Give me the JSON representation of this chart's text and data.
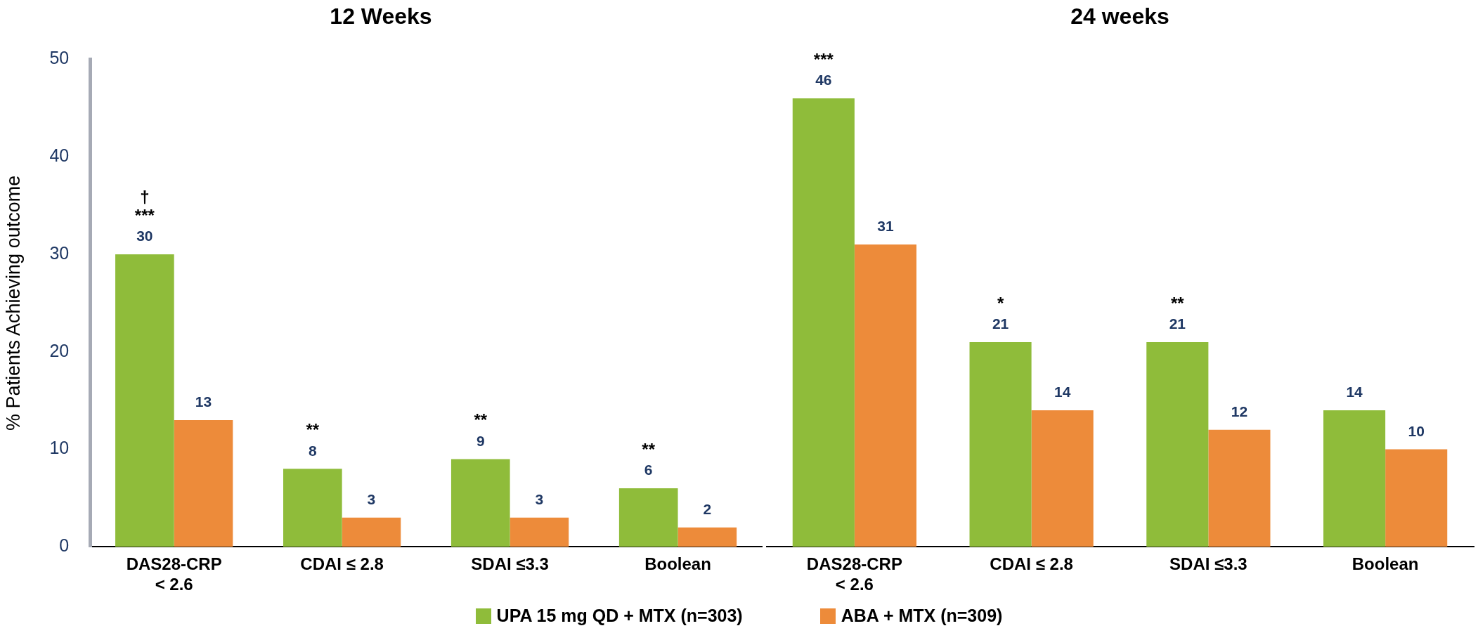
{
  "chart_data": [
    {
      "type": "bar",
      "title": "12 Weeks",
      "ylabel": "% Patients Achieving outcome",
      "categories": [
        "DAS28-CRP\n< 2.6",
        "CDAI ≤ 2.8",
        "SDAI ≤3.3",
        "Boolean"
      ],
      "series": [
        {
          "name": "UPA 15 mg QD + MTX (n=303)",
          "color": "#8fbc3a",
          "values": [
            30,
            8,
            9,
            6
          ]
        },
        {
          "name": "ABA + MTX (n=309)",
          "color": "#ed8b3a",
          "values": [
            13,
            3,
            3,
            2
          ]
        }
      ],
      "ylim": [
        0,
        50
      ],
      "yticks": [
        0,
        10,
        20,
        30,
        40,
        50
      ],
      "grid": false,
      "legend": "bottom",
      "data_labels": true,
      "annotations": [
        {
          "text": "†\n***",
          "x": "DAS28-CRP\n< 2.6",
          "y": 30
        },
        {
          "text": "**",
          "x": "CDAI ≤ 2.8",
          "y": 8
        },
        {
          "text": "**",
          "x": "SDAI ≤3.3",
          "y": 9
        },
        {
          "text": "**",
          "x": "Boolean",
          "y": 6
        }
      ]
    },
    {
      "type": "bar",
      "title": "24 weeks",
      "categories": [
        "DAS28-CRP\n< 2.6",
        "CDAI ≤ 2.8",
        "SDAI ≤3.3",
        "Boolean"
      ],
      "series": [
        {
          "color": "#8fbc3a",
          "values": [
            46,
            21,
            21,
            14
          ]
        },
        {
          "color": "#ed8b3a",
          "values": [
            31,
            14,
            12,
            10
          ]
        }
      ],
      "ylim": [
        0,
        50
      ],
      "yticks": [
        0,
        10,
        20,
        30,
        40,
        50
      ],
      "grid": false,
      "tick_labels": "x",
      "data_labels": true,
      "annotations": [
        {
          "text": "***",
          "x": "DAS28-CRP\n< 2.6",
          "y": 46
        },
        {
          "text": "*",
          "x": "CDAI ≤ 2.8",
          "y": 21
        },
        {
          "text": "**",
          "x": "SDAI ≤3.3",
          "y": 21
        }
      ]
    }
  ]
}
